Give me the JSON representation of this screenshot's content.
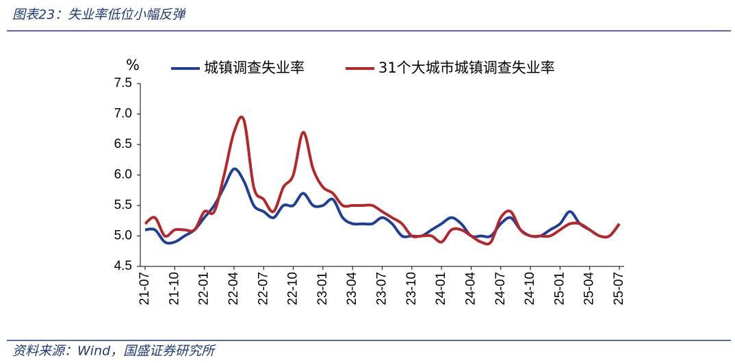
{
  "header": {
    "title": "图表23：失业率低位小幅反弹"
  },
  "footer": {
    "source": "资料来源：Wind，国盛证券研究所"
  },
  "chart_data": {
    "type": "line",
    "y_unit": "%",
    "categories": [
      "21-07",
      null,
      null,
      "21-10",
      null,
      null,
      "22-01",
      null,
      null,
      "22-04",
      null,
      null,
      "22-07",
      null,
      null,
      "22-10",
      null,
      null,
      "23-01",
      null,
      null,
      "23-04",
      null,
      null,
      "23-07",
      null,
      null,
      "23-10",
      null,
      null,
      "24-01",
      null,
      null,
      "24-04",
      null,
      null,
      "24-07",
      null,
      null,
      "24-10",
      null,
      null,
      "25-01",
      null,
      null,
      "25-04",
      null,
      null,
      "25-07"
    ],
    "series": [
      {
        "name": "城镇调查失业率",
        "color": "#1f3f97",
        "values": [
          5.1,
          5.1,
          4.9,
          4.9,
          5.0,
          5.1,
          5.3,
          5.5,
          5.8,
          6.1,
          5.9,
          5.5,
          5.4,
          5.3,
          5.5,
          5.5,
          5.7,
          5.5,
          5.5,
          5.6,
          5.3,
          5.2,
          5.2,
          5.2,
          5.3,
          5.2,
          5.0,
          5.0,
          5.0,
          5.1,
          5.2,
          5.3,
          5.2,
          5.0,
          5.0,
          5.0,
          5.2,
          5.3,
          5.1,
          5.0,
          5.0,
          5.1,
          5.2,
          5.4,
          5.2,
          5.1,
          5.0,
          5.0,
          5.2
        ]
      },
      {
        "name": "31个大城市城镇调查失业率",
        "color": "#b5262b",
        "values": [
          5.2,
          5.3,
          5.0,
          5.1,
          5.1,
          5.1,
          5.4,
          5.4,
          6.0,
          6.7,
          6.9,
          5.8,
          5.6,
          5.4,
          5.8,
          6.0,
          6.7,
          6.1,
          5.8,
          5.7,
          5.5,
          5.5,
          5.5,
          5.5,
          5.4,
          5.3,
          5.2,
          5.0,
          5.0,
          5.0,
          4.9,
          5.1,
          5.1,
          5.0,
          4.9,
          4.9,
          5.3,
          5.4,
          5.1,
          5.0,
          5.0,
          5.0,
          5.1,
          5.2,
          5.2,
          5.1,
          5.0,
          5.0,
          5.2
        ]
      }
    ],
    "ylim": [
      4.5,
      7.5
    ],
    "yticks": [
      4.5,
      {
        "value": 5,
        "label": "5.0"
      },
      5.5,
      {
        "value": 6,
        "label": "6.0"
      },
      6.5,
      {
        "value": 7,
        "label": "7.0"
      },
      7.5
    ],
    "grid": false
  }
}
